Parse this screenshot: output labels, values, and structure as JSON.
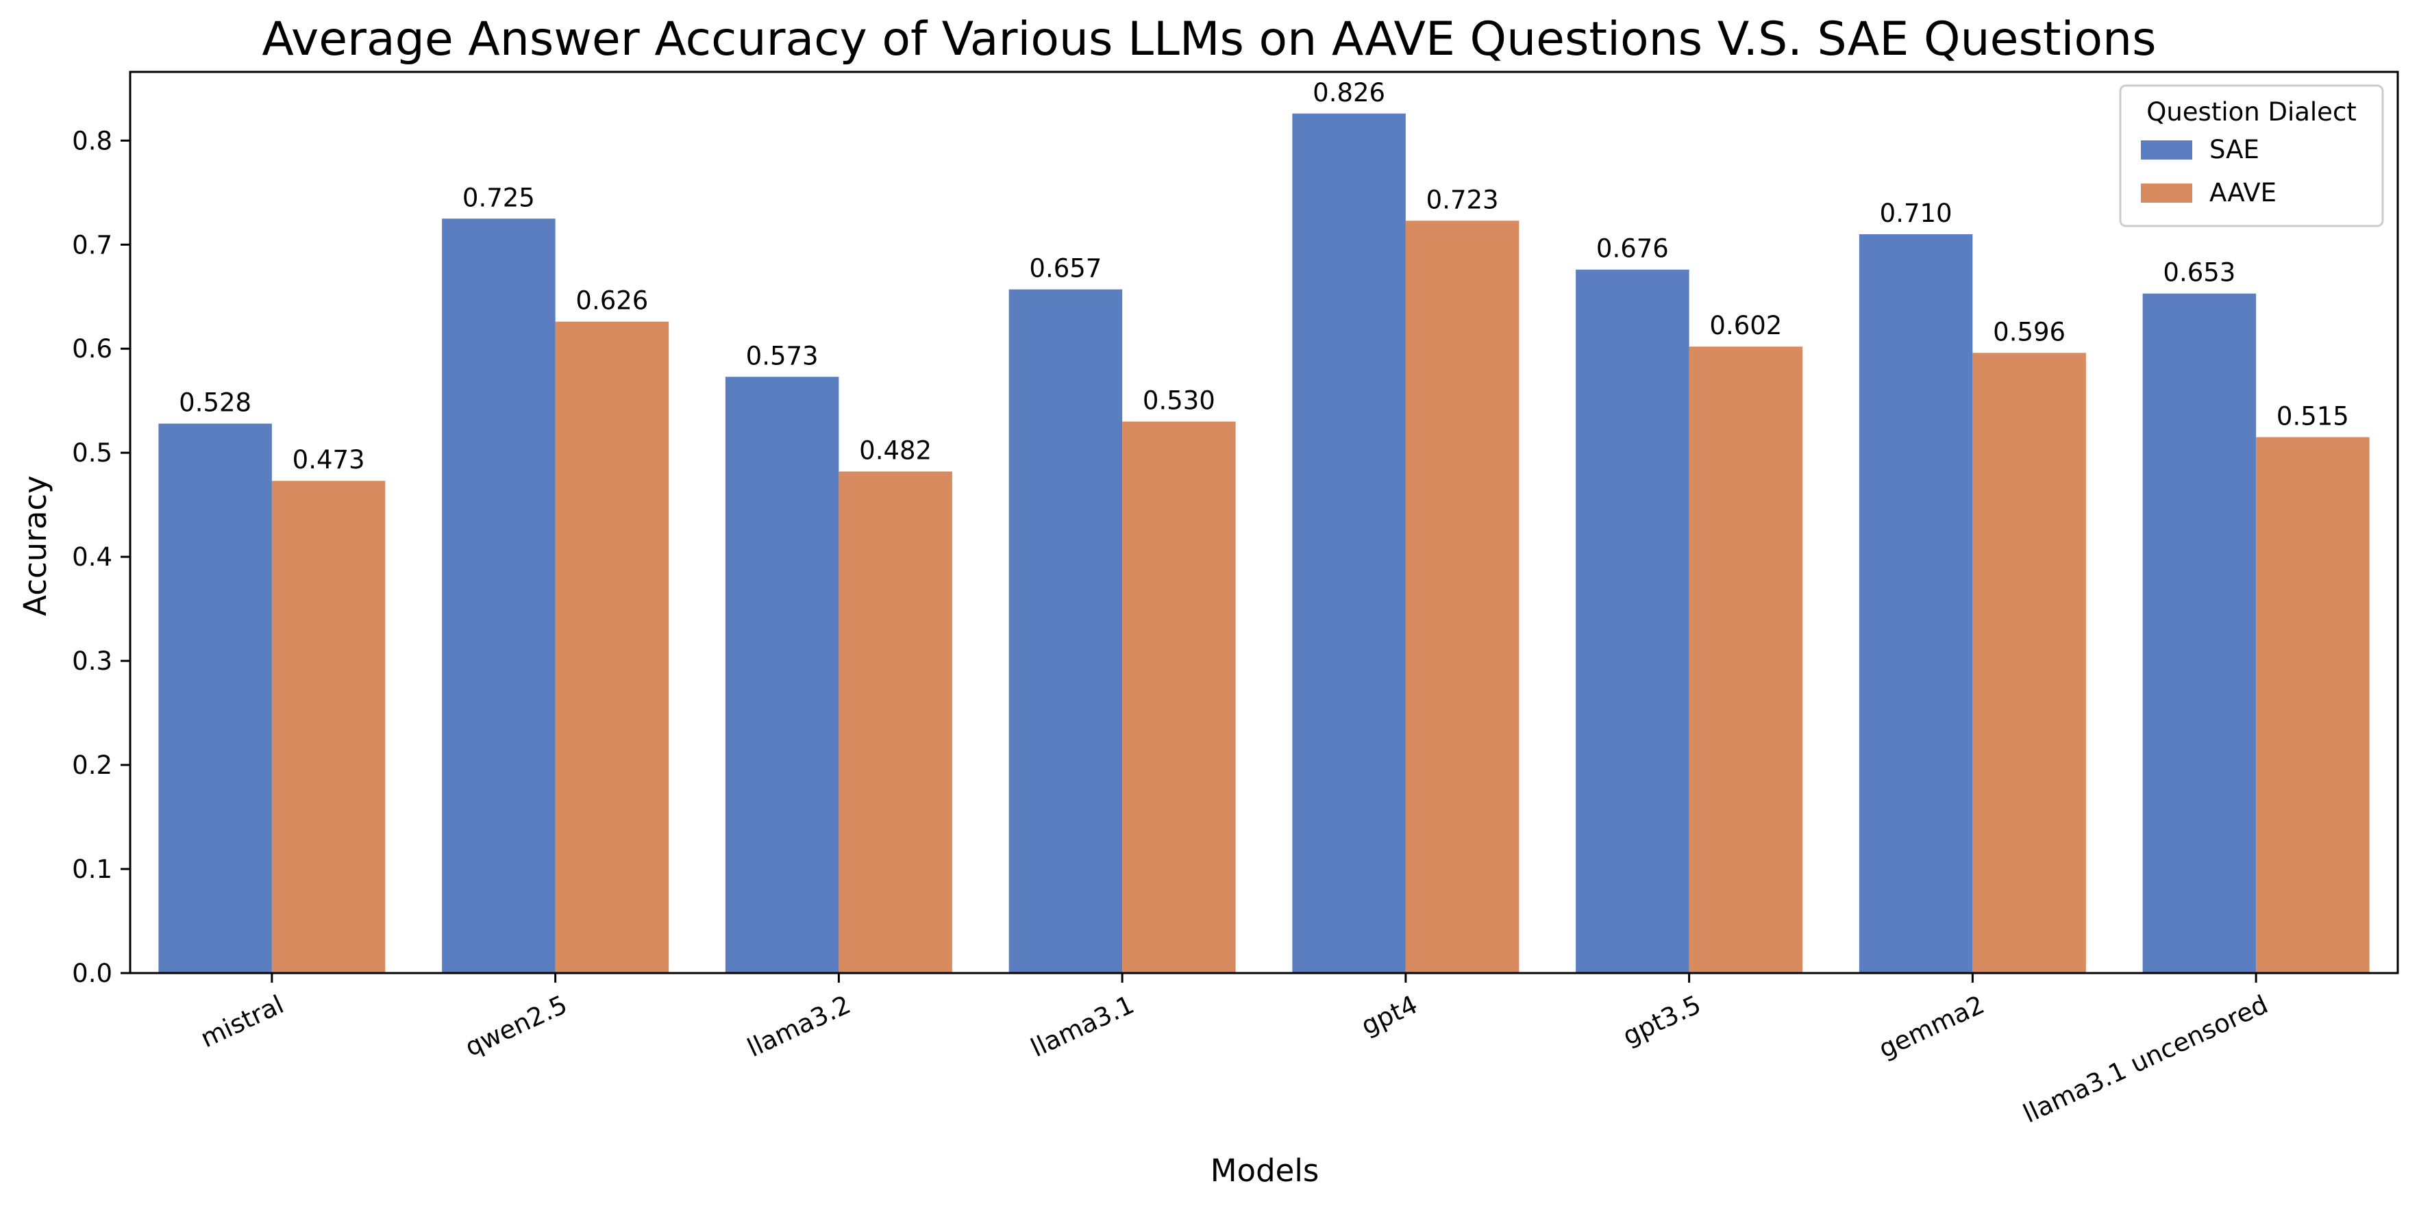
{
  "chart_data": {
    "type": "bar",
    "title": "Average Answer Accuracy of Various LLMs on AAVE Questions V.S. SAE Questions",
    "xlabel": "Models",
    "ylabel": "Accuracy",
    "categories": [
      "mistral",
      "qwen2.5",
      "llama3.2",
      "llama3.1",
      "gpt4",
      "gpt3.5",
      "gemma2",
      "llama3.1 uncensored"
    ],
    "series": [
      {
        "name": "SAE",
        "values": [
          0.528,
          0.725,
          0.573,
          0.657,
          0.826,
          0.676,
          0.71,
          0.653
        ],
        "color": "#5b7ec1"
      },
      {
        "name": "AAVE",
        "values": [
          0.473,
          0.626,
          0.482,
          0.53,
          0.723,
          0.602,
          0.596,
          0.515
        ],
        "color": "#d88b5e"
      }
    ],
    "data_labels": [
      [
        "0.528",
        "0.725",
        "0.573",
        "0.657",
        "0.826",
        "0.676",
        "0.710",
        "0.653"
      ],
      [
        "0.473",
        "0.626",
        "0.482",
        "0.530",
        "0.723",
        "0.602",
        "0.596",
        "0.515"
      ]
    ],
    "ylim": [
      0,
      0.866
    ],
    "yticks": [
      "0.0",
      "0.1",
      "0.2",
      "0.3",
      "0.4",
      "0.5",
      "0.6",
      "0.7",
      "0.8"
    ],
    "legend": {
      "title": "Question Dialect",
      "position": "top-right"
    },
    "grid": false,
    "xtick_rotation": "25 degrees"
  }
}
